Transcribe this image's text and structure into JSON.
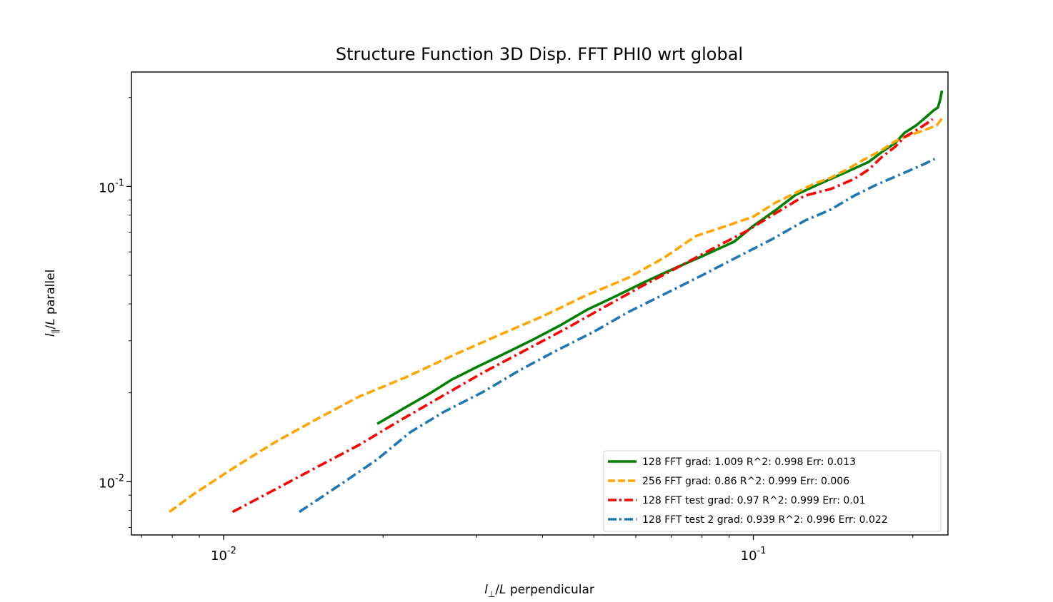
{
  "chart_data": {
    "type": "line",
    "title": "Structure Function 3D Disp. FFT PHI0 wrt global",
    "xlabel": "l_⊥/L perpendicular",
    "ylabel": "l_∥/L parallel",
    "xscale": "log",
    "yscale": "log",
    "xlim": [
      0.0067,
      0.233
    ],
    "ylim": [
      0.0066,
      0.244
    ],
    "x_ticks": [
      {
        "value": 0.01,
        "label": "10^{-2}"
      },
      {
        "value": 0.1,
        "label": "10^{-1}"
      }
    ],
    "y_ticks": [
      {
        "value": 0.01,
        "label": "10^{-2}"
      },
      {
        "value": 0.1,
        "label": "10^{-1}"
      }
    ],
    "legend_position": "lower-right",
    "grid": false,
    "series": [
      {
        "name": "128 FFT grad: 1.009 R^2: 0.998  Err: 0.013",
        "color": "#008000",
        "dash": "solid",
        "points": [
          [
            0.0195,
            0.0157
          ],
          [
            0.022,
            0.0178
          ],
          [
            0.0245,
            0.0199
          ],
          [
            0.027,
            0.0222
          ],
          [
            0.03,
            0.0244
          ],
          [
            0.034,
            0.0272
          ],
          [
            0.038,
            0.03
          ],
          [
            0.043,
            0.0337
          ],
          [
            0.0485,
            0.0382
          ],
          [
            0.055,
            0.0425
          ],
          [
            0.062,
            0.0472
          ],
          [
            0.07,
            0.0522
          ],
          [
            0.08,
            0.058
          ],
          [
            0.092,
            0.065
          ],
          [
            0.1,
            0.0735
          ],
          [
            0.11,
            0.083
          ],
          [
            0.12,
            0.0935
          ],
          [
            0.135,
            0.103
          ],
          [
            0.15,
            0.112
          ],
          [
            0.165,
            0.121
          ],
          [
            0.175,
            0.131
          ],
          [
            0.185,
            0.14
          ],
          [
            0.193,
            0.152
          ],
          [
            0.203,
            0.161
          ],
          [
            0.212,
            0.172
          ],
          [
            0.219,
            0.181
          ],
          [
            0.223,
            0.185
          ],
          [
            0.225,
            0.195
          ],
          [
            0.227,
            0.211
          ]
        ]
      },
      {
        "name": "256 FFT grad: 0.86 R^2: 0.999  Err: 0.006",
        "color": "#ffa500",
        "dash": "dashed",
        "points": [
          [
            0.0079,
            0.0079
          ],
          [
            0.0088,
            0.0091
          ],
          [
            0.0105,
            0.0112
          ],
          [
            0.0125,
            0.0136
          ],
          [
            0.015,
            0.0163
          ],
          [
            0.018,
            0.0194
          ],
          [
            0.022,
            0.0225
          ],
          [
            0.027,
            0.0267
          ],
          [
            0.033,
            0.0313
          ],
          [
            0.04,
            0.0363
          ],
          [
            0.048,
            0.0425
          ],
          [
            0.058,
            0.049
          ],
          [
            0.068,
            0.0575
          ],
          [
            0.078,
            0.068
          ],
          [
            0.09,
            0.074
          ],
          [
            0.1,
            0.079
          ],
          [
            0.11,
            0.088
          ],
          [
            0.12,
            0.095
          ],
          [
            0.13,
            0.102
          ],
          [
            0.14,
            0.107
          ],
          [
            0.15,
            0.114
          ],
          [
            0.16,
            0.122
          ],
          [
            0.175,
            0.133
          ],
          [
            0.185,
            0.142
          ],
          [
            0.195,
            0.148
          ],
          [
            0.21,
            0.155
          ],
          [
            0.222,
            0.161
          ],
          [
            0.227,
            0.17
          ]
        ]
      },
      {
        "name": "128 FFT test grad: 0.97 R^2: 0.999  Err: 0.01",
        "color": "#ff0000",
        "dash": "dashdot",
        "points": [
          [
            0.0104,
            0.0079
          ],
          [
            0.0125,
            0.0094
          ],
          [
            0.015,
            0.0112
          ],
          [
            0.018,
            0.0133
          ],
          [
            0.0215,
            0.0161
          ],
          [
            0.026,
            0.0196
          ],
          [
            0.031,
            0.0235
          ],
          [
            0.037,
            0.0278
          ],
          [
            0.044,
            0.0328
          ],
          [
            0.052,
            0.0388
          ],
          [
            0.061,
            0.0455
          ],
          [
            0.071,
            0.0525
          ],
          [
            0.083,
            0.061
          ],
          [
            0.097,
            0.0705
          ],
          [
            0.11,
            0.081
          ],
          [
            0.125,
            0.093
          ],
          [
            0.14,
            0.098
          ],
          [
            0.155,
            0.106
          ],
          [
            0.165,
            0.114
          ],
          [
            0.175,
            0.126
          ],
          [
            0.185,
            0.136
          ],
          [
            0.193,
            0.147
          ],
          [
            0.203,
            0.155
          ],
          [
            0.212,
            0.163
          ],
          [
            0.218,
            0.169
          ]
        ]
      },
      {
        "name": "128 FFT test 2 grad: 0.939 R^2: 0.996  Err: 0.022",
        "color": "#1f77b4",
        "dash": "dashdot",
        "points": [
          [
            0.0139,
            0.0079
          ],
          [
            0.0165,
            0.0097
          ],
          [
            0.0195,
            0.0119
          ],
          [
            0.0225,
            0.0147
          ],
          [
            0.026,
            0.0172
          ],
          [
            0.031,
            0.0202
          ],
          [
            0.036,
            0.0237
          ],
          [
            0.042,
            0.0275
          ],
          [
            0.05,
            0.0322
          ],
          [
            0.058,
            0.0375
          ],
          [
            0.068,
            0.0432
          ],
          [
            0.08,
            0.05
          ],
          [
            0.093,
            0.0575
          ],
          [
            0.108,
            0.066
          ],
          [
            0.125,
            0.0765
          ],
          [
            0.14,
            0.0835
          ],
          [
            0.155,
            0.093
          ],
          [
            0.17,
            0.101
          ],
          [
            0.19,
            0.11
          ],
          [
            0.21,
            0.119
          ],
          [
            0.22,
            0.124
          ]
        ]
      }
    ]
  }
}
